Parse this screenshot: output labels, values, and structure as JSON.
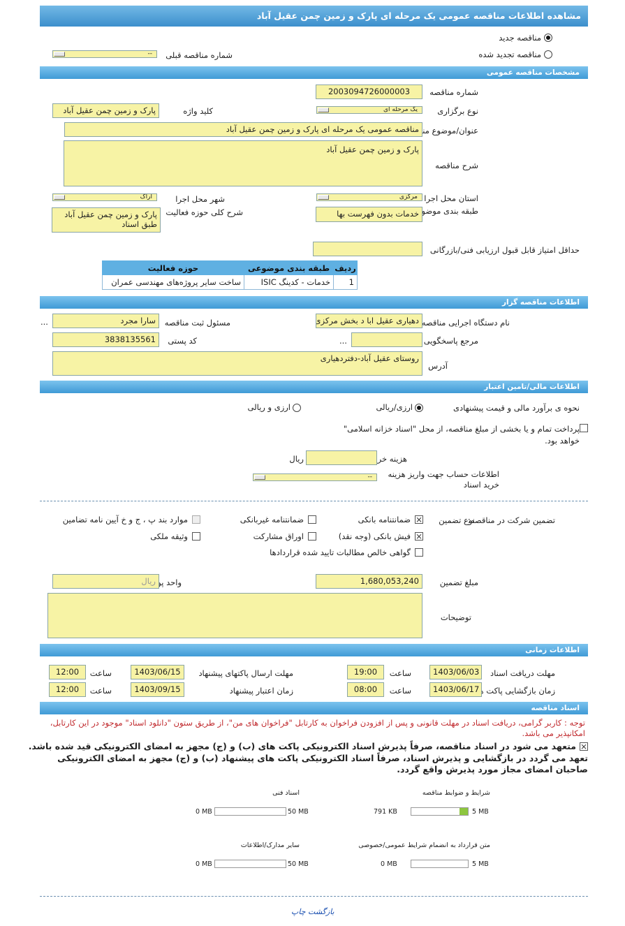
{
  "title": "مشاهده اطلاعات مناقصه عمومی یک مرحله ای پارک و زمین چمن عقیل آباد",
  "tender_type": {
    "new": "مناقصه جدید",
    "renewed": "مناقصه تجدید شده",
    "selected": "new",
    "prev_label": "شماره مناقصه قبلی",
    "prev_value": "--"
  },
  "general": {
    "header": "مشخصات مناقصه عمومی",
    "number_label": "شماره مناقصه",
    "number": "2003094726000003",
    "holding_label": "نوع برگزاری",
    "holding": "یک مرحله ای",
    "keyword_label": "کلید واژه",
    "keyword": "پارک و زمین چمن عقیل آباد",
    "subject_label": "عنوان/موضوع مناقصه",
    "subject": "مناقصه عمومی یک مرحله ای پارک و زمین چمن عقیل آباد",
    "desc_label": "شرح مناقصه",
    "desc": "پارک و زمین چمن عقیل آباد",
    "province_label": "استان محل اجرا",
    "province": "مرکزی",
    "city_label": "شهر محل اجرا",
    "city": "اراک",
    "category_label": "طبقه بندی موضوعی",
    "category": "خدمات بدون فهرست بها",
    "scope_label": "شرح کلی حوزه فعالیت",
    "scope": "پارک و زمین چمن عقیل آباد طبق اسناد",
    "min_score_label": "حداقل امتیاز قابل قبول ارزیابی فنی/بازرگانی",
    "min_score": "",
    "table": {
      "headers": [
        "ردیف",
        "طبقه بندی موضوعی",
        "حوزه فعالیت"
      ],
      "rows": [
        [
          "1",
          "خدمات - کدینگ ISIC",
          "ساخت سایر پروژه‌های مهندسی عمران"
        ]
      ]
    }
  },
  "organizer": {
    "header": "اطلاعات مناقصه گزار",
    "org_label": "نام دستگاه اجرایی مناقصه گزار",
    "org": "دهیاری عقیل ابا د بخش مرکزی",
    "resp_label": "مسئول ثبت مناقصه",
    "resp": "سارا مجرد",
    "more": "...",
    "ref_label": "مرجع پاسخگویی",
    "ref": "",
    "postal_label": "کد پستی",
    "postal": "3838135561",
    "address_label": "آدرس",
    "address": "روستای عقیل آباد-دفتردهیاری"
  },
  "finance": {
    "header": "اطلاعات مالی/تامین اعتبار",
    "estimate_label": "نحوه ی برآورد مالی و قیمت پیشنهادی",
    "opt1": "ارزی/ریالی",
    "opt2": "ارزی و ریالی",
    "selected": "opt1",
    "treasury_text": "پرداخت تمام و یا بخشی از مبلغ مناقصه، از محل \"اسناد خزانه اسلامی\" خواهد بود.",
    "treasury_checked": false,
    "doc_cost_label": "هزینه خرید اسناد",
    "doc_cost": "",
    "currency": "ریال",
    "account_label": "اطلاعات حساب جهت واریز هزینه خرید اسناد",
    "account": "--"
  },
  "guarantee": {
    "label": "تضمین شرکت در مناقصه:",
    "type_label": "نوع تضمین",
    "options": [
      {
        "label": "ضمانتنامه بانکی",
        "checked": true
      },
      {
        "label": "ضمانتنامه غیربانکی",
        "checked": false
      },
      {
        "label": "موارد بند پ ، ج و خ آیین نامه تضامین",
        "checked": false,
        "disabled": true
      },
      {
        "label": "فیش بانکی (وجه نقد)",
        "checked": true
      },
      {
        "label": "اوراق مشارکت",
        "checked": false
      },
      {
        "label": "وثیقه ملکی",
        "checked": false
      },
      {
        "label": "گواهی خالص مطالبات تایید شده قراردادها",
        "checked": false
      }
    ],
    "amount_label": "مبلغ تضمین",
    "amount": "1,680,053,240",
    "unit_label": "واحد پول",
    "unit": "ریال",
    "notes_label": "توضیحات",
    "notes": ""
  },
  "timing": {
    "header": "اطلاعات زمانی",
    "time_label": "ساعت",
    "doc_receive_label": "مهلت دریافت اسناد",
    "doc_receive_date": "1403/06/03",
    "doc_receive_time": "19:00",
    "submit_label": "مهلت ارسال پاکتهای پیشنهاد",
    "submit_date": "1403/06/15",
    "submit_time": "12:00",
    "open_label": "زمان بازگشایی پاکت ها",
    "open_date": "1403/06/17",
    "open_time": "08:00",
    "validity_label": "زمان اعتبار پیشنهاد",
    "validity_date": "1403/09/15",
    "validity_time": "12:00"
  },
  "documents": {
    "header": "اسناد مناقصه",
    "note": "توجه : کاربر گرامی، دریافت اسناد در مهلت قانونی و پس از افزودن فراخوان به کارتابل \"فراخوان های من\"، از طریق ستون \"دانلود اسناد\" موجود در این کارتابل، امکانپذیر می باشد.",
    "commit1": "متعهد می شود در اسناد مناقصه، صرفاً پذیرش اسناد الکترونیکی پاکت های (ب) و (ج) مجهز به امضای الکترونیکی قید شده باشد.",
    "commit2": "تعهد می گردد در بازگشایی و پذیرش اسناد، صرفاً اسناد الکترونیکی پاکت های پیشنهاد (ب) و (ج) مجهز به امضای الکترونیکی صاحبان امضای مجاز مورد پذیرش واقع گردد.",
    "files": [
      {
        "label": "شرایط و ضوابط مناقصه",
        "max": "5 MB",
        "used": "791 KB",
        "fraction": 0.15
      },
      {
        "label": "اسناد فنی",
        "max": "50 MB",
        "used": "0 MB",
        "fraction": 0
      },
      {
        "label": "متن قرارداد به انضمام شرایط عمومی/خصوصی",
        "max": "5 MB",
        "used": "0 MB",
        "fraction": 0
      },
      {
        "label": "سایر مدارک/اطلاعات",
        "max": "50 MB",
        "used": "0 MB",
        "fraction": 0
      }
    ]
  },
  "footer": {
    "print": "چاپ",
    "back": "بازگشت"
  },
  "colors": {
    "header_bar": "#3f9ad6",
    "input_bg": "#f7f3a5",
    "progress": "#8dc63f",
    "note": "#c0282c",
    "link": "#1a4fb0"
  }
}
